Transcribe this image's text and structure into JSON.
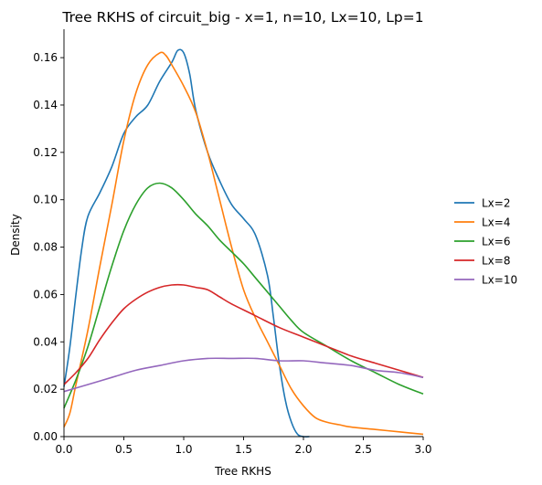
{
  "chart_data": {
    "type": "line",
    "title": "Tree RKHS of circuit_big - x=1, n=10, Lx=10, Lp=1",
    "xlabel": "Tree RKHS",
    "ylabel": "Density",
    "xlim": [
      0.0,
      3.0
    ],
    "ylim": [
      0.0,
      0.172
    ],
    "xticks": [
      "0.0",
      "0.5",
      "1.0",
      "1.5",
      "2.0",
      "2.5",
      "3.0"
    ],
    "yticks": [
      "0.00",
      "0.02",
      "0.04",
      "0.06",
      "0.08",
      "0.10",
      "0.12",
      "0.14",
      "0.16"
    ],
    "legend_position": "right",
    "grid": false,
    "series": [
      {
        "name": "Lx=2",
        "color": "#1f77b4",
        "points": [
          [
            0.0,
            0.021
          ],
          [
            0.05,
            0.038
          ],
          [
            0.1,
            0.06
          ],
          [
            0.15,
            0.08
          ],
          [
            0.2,
            0.093
          ],
          [
            0.3,
            0.103
          ],
          [
            0.4,
            0.114
          ],
          [
            0.5,
            0.128
          ],
          [
            0.6,
            0.135
          ],
          [
            0.7,
            0.14
          ],
          [
            0.8,
            0.15
          ],
          [
            0.9,
            0.158
          ],
          [
            0.95,
            0.163
          ],
          [
            1.0,
            0.162
          ],
          [
            1.05,
            0.153
          ],
          [
            1.1,
            0.138
          ],
          [
            1.2,
            0.12
          ],
          [
            1.3,
            0.108
          ],
          [
            1.4,
            0.098
          ],
          [
            1.5,
            0.092
          ],
          [
            1.6,
            0.085
          ],
          [
            1.7,
            0.068
          ],
          [
            1.75,
            0.05
          ],
          [
            1.8,
            0.03
          ],
          [
            1.85,
            0.015
          ],
          [
            1.9,
            0.006
          ],
          [
            1.95,
            0.001
          ],
          [
            2.0,
            0.0
          ],
          [
            2.05,
            0.0
          ]
        ]
      },
      {
        "name": "Lx=4",
        "color": "#ff7f0e",
        "points": [
          [
            0.0,
            0.004
          ],
          [
            0.05,
            0.01
          ],
          [
            0.1,
            0.022
          ],
          [
            0.2,
            0.045
          ],
          [
            0.3,
            0.072
          ],
          [
            0.4,
            0.098
          ],
          [
            0.5,
            0.125
          ],
          [
            0.6,
            0.145
          ],
          [
            0.7,
            0.157
          ],
          [
            0.8,
            0.162
          ],
          [
            0.85,
            0.161
          ],
          [
            0.9,
            0.157
          ],
          [
            1.0,
            0.148
          ],
          [
            1.1,
            0.137
          ],
          [
            1.2,
            0.12
          ],
          [
            1.3,
            0.1
          ],
          [
            1.4,
            0.08
          ],
          [
            1.5,
            0.062
          ],
          [
            1.6,
            0.05
          ],
          [
            1.7,
            0.04
          ],
          [
            1.8,
            0.03
          ],
          [
            1.9,
            0.02
          ],
          [
            2.0,
            0.013
          ],
          [
            2.1,
            0.008
          ],
          [
            2.2,
            0.006
          ],
          [
            2.3,
            0.005
          ],
          [
            2.4,
            0.004
          ],
          [
            2.6,
            0.003
          ],
          [
            2.8,
            0.002
          ],
          [
            3.0,
            0.001
          ]
        ]
      },
      {
        "name": "Lx=6",
        "color": "#2ca02c",
        "points": [
          [
            0.0,
            0.012
          ],
          [
            0.1,
            0.024
          ],
          [
            0.2,
            0.038
          ],
          [
            0.3,
            0.055
          ],
          [
            0.4,
            0.072
          ],
          [
            0.5,
            0.087
          ],
          [
            0.6,
            0.098
          ],
          [
            0.7,
            0.105
          ],
          [
            0.8,
            0.107
          ],
          [
            0.9,
            0.105
          ],
          [
            1.0,
            0.1
          ],
          [
            1.1,
            0.094
          ],
          [
            1.2,
            0.089
          ],
          [
            1.3,
            0.083
          ],
          [
            1.4,
            0.078
          ],
          [
            1.5,
            0.073
          ],
          [
            1.6,
            0.067
          ],
          [
            1.7,
            0.061
          ],
          [
            1.8,
            0.055
          ],
          [
            1.9,
            0.049
          ],
          [
            2.0,
            0.044
          ],
          [
            2.2,
            0.038
          ],
          [
            2.4,
            0.032
          ],
          [
            2.6,
            0.027
          ],
          [
            2.8,
            0.022
          ],
          [
            3.0,
            0.018
          ]
        ]
      },
      {
        "name": "Lx=8",
        "color": "#d62728",
        "points": [
          [
            0.0,
            0.022
          ],
          [
            0.1,
            0.027
          ],
          [
            0.2,
            0.033
          ],
          [
            0.3,
            0.041
          ],
          [
            0.4,
            0.048
          ],
          [
            0.5,
            0.054
          ],
          [
            0.6,
            0.058
          ],
          [
            0.7,
            0.061
          ],
          [
            0.8,
            0.063
          ],
          [
            0.9,
            0.064
          ],
          [
            1.0,
            0.064
          ],
          [
            1.1,
            0.063
          ],
          [
            1.2,
            0.062
          ],
          [
            1.3,
            0.059
          ],
          [
            1.4,
            0.056
          ],
          [
            1.6,
            0.051
          ],
          [
            1.8,
            0.046
          ],
          [
            2.0,
            0.042
          ],
          [
            2.2,
            0.038
          ],
          [
            2.4,
            0.034
          ],
          [
            2.6,
            0.031
          ],
          [
            2.8,
            0.028
          ],
          [
            3.0,
            0.025
          ]
        ]
      },
      {
        "name": "Lx=10",
        "color": "#9467bd",
        "points": [
          [
            0.0,
            0.019
          ],
          [
            0.2,
            0.022
          ],
          [
            0.4,
            0.025
          ],
          [
            0.6,
            0.028
          ],
          [
            0.8,
            0.03
          ],
          [
            1.0,
            0.032
          ],
          [
            1.2,
            0.033
          ],
          [
            1.4,
            0.033
          ],
          [
            1.6,
            0.033
          ],
          [
            1.8,
            0.032
          ],
          [
            2.0,
            0.032
          ],
          [
            2.2,
            0.031
          ],
          [
            2.4,
            0.03
          ],
          [
            2.6,
            0.028
          ],
          [
            2.8,
            0.027
          ],
          [
            3.0,
            0.025
          ]
        ]
      }
    ]
  }
}
